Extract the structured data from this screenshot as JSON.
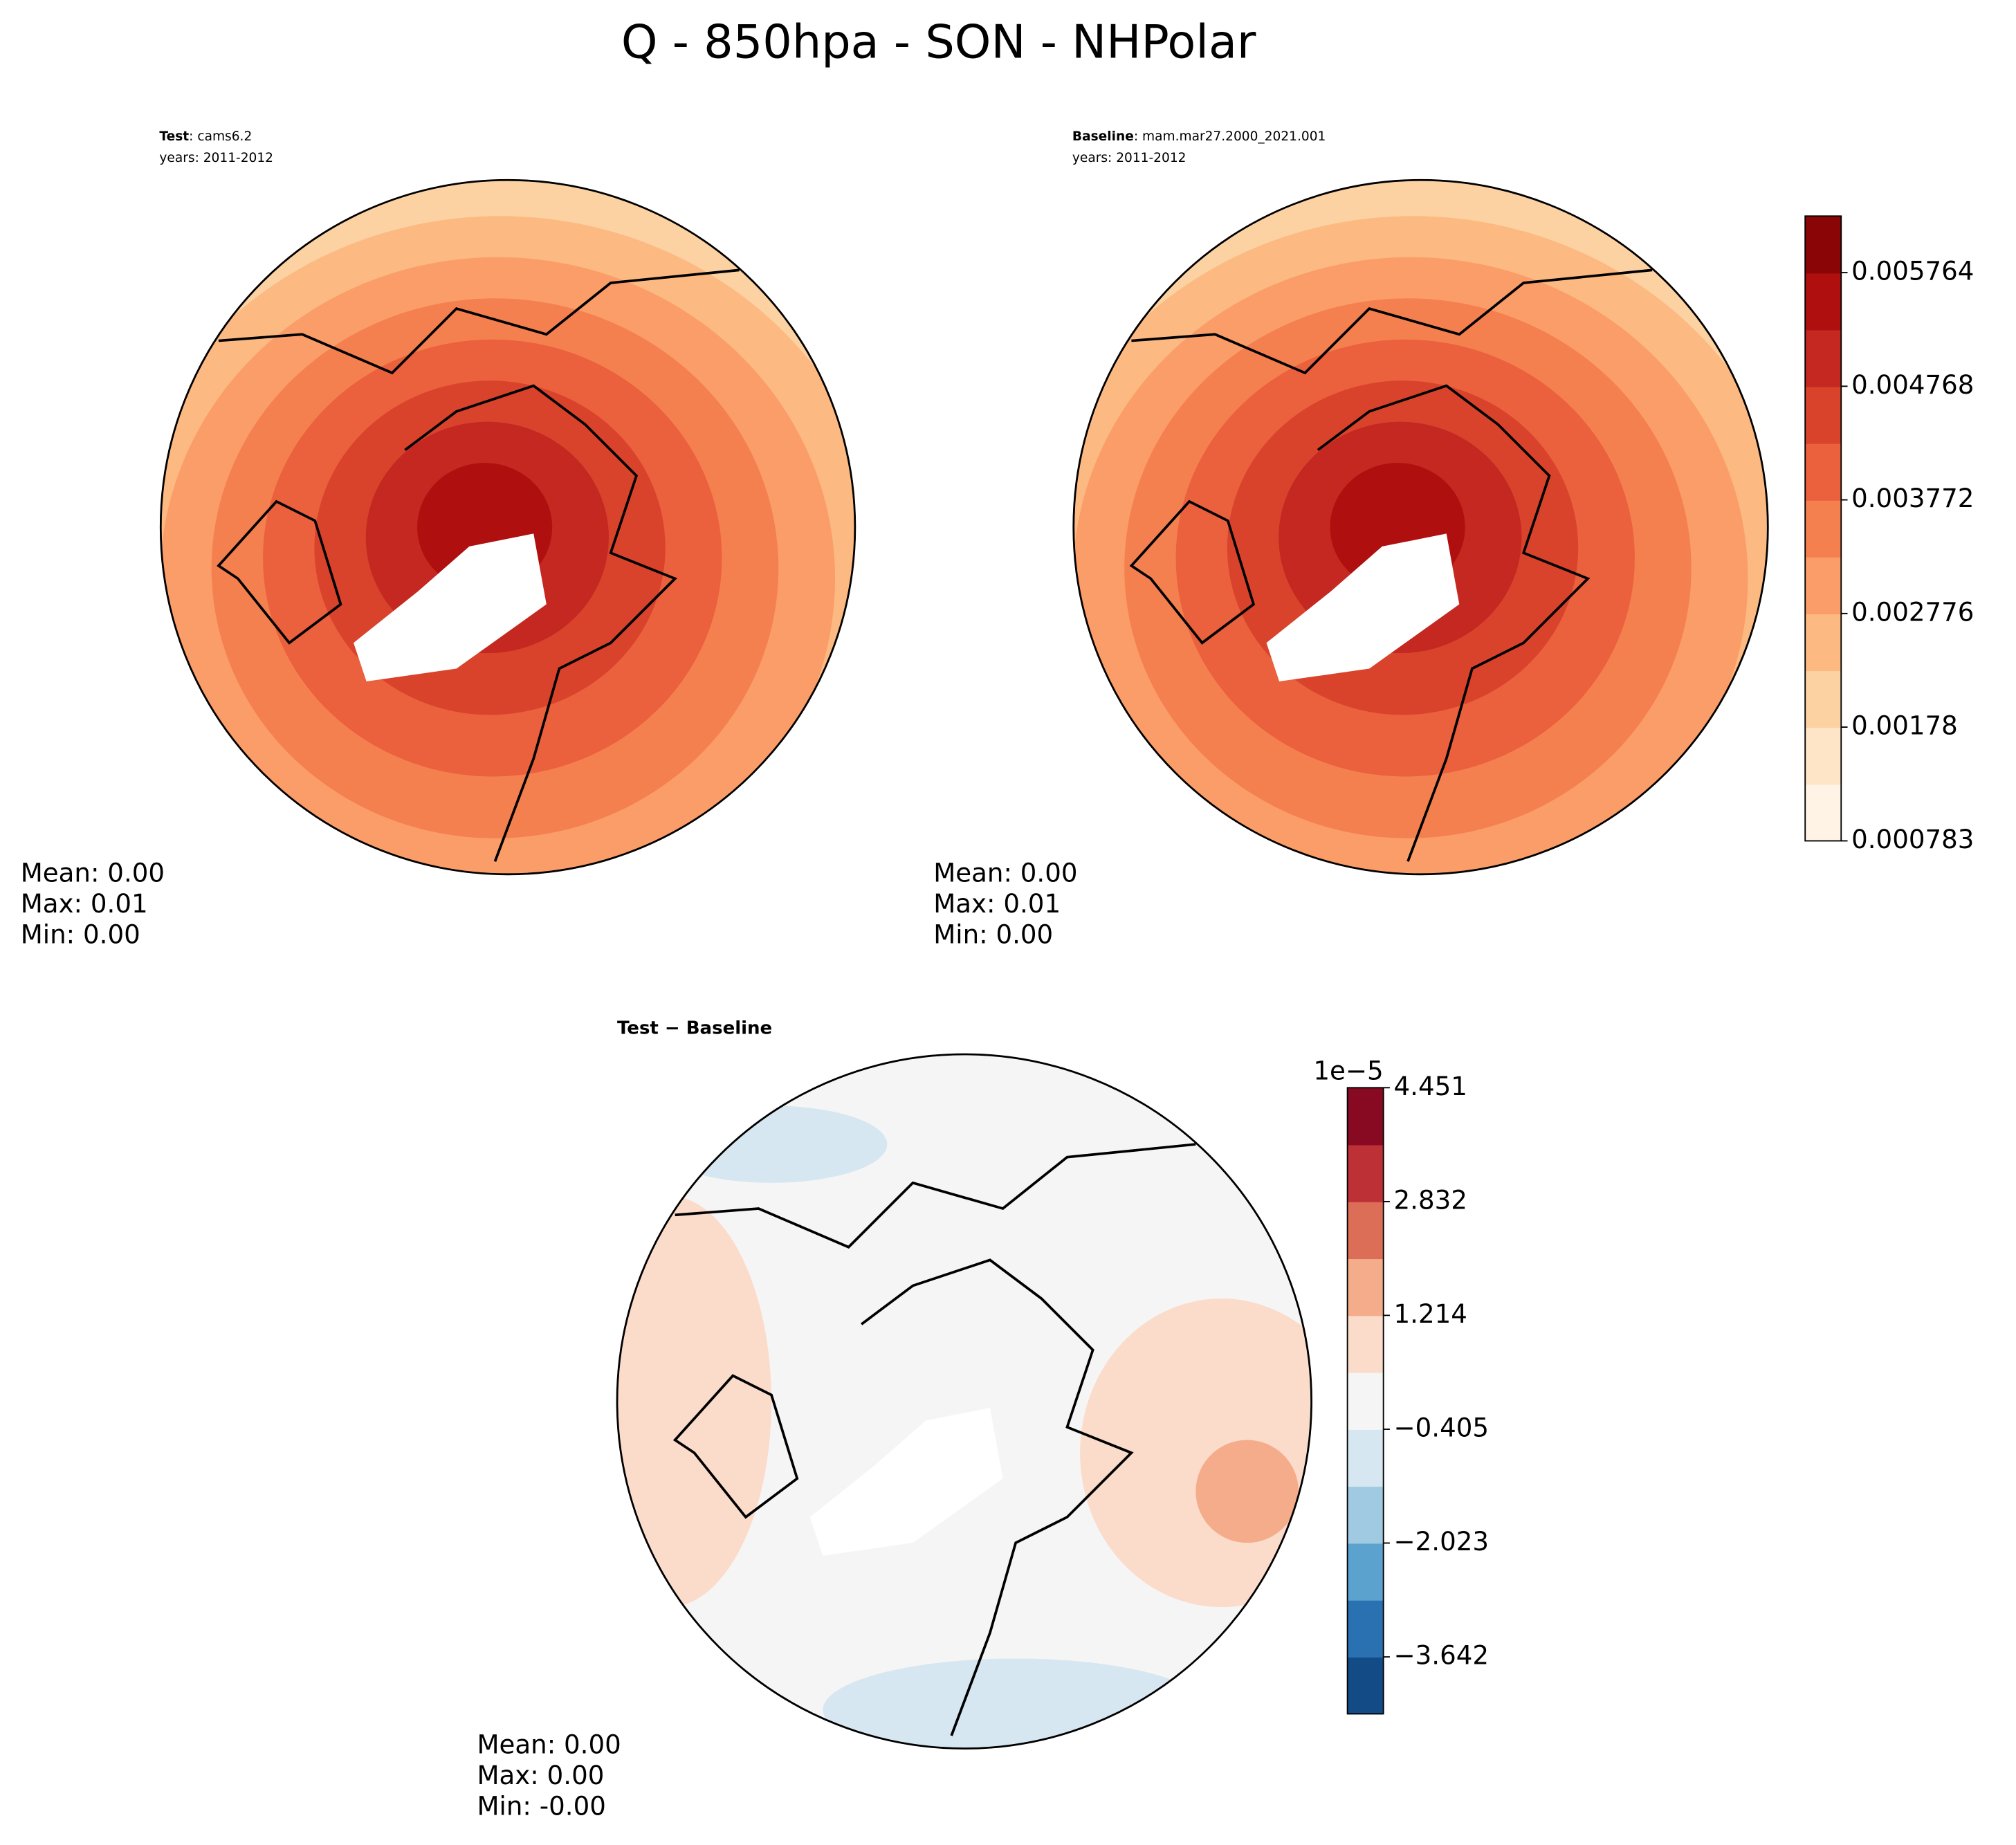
{
  "title": "Q - 850hpa - SON - NHPolar",
  "panels": [
    {
      "label": "Test",
      "name": ": cams6.2",
      "years": "years: 2011-2012",
      "stats": [
        "Mean:  0.00",
        "Max:  0.01",
        "Min:  0.00"
      ]
    },
    {
      "label": "Baseline",
      "name": ": mam.mar27.2000_2021.001",
      "years": "years: 2011-2012",
      "stats": [
        "Mean:  0.00",
        "Max:  0.01",
        "Min:  0.00"
      ]
    }
  ],
  "diff": {
    "label": "Test − Baseline",
    "stats": [
      "Mean:  0.00",
      "Max:  0.00",
      "Min: -0.00"
    ]
  },
  "colorbars": [
    {
      "lim": [
        0.000783,
        0.00626
      ],
      "ticks": [
        0.000783,
        0.00178,
        0.002776,
        0.003772,
        0.004768,
        0.005764
      ],
      "colors": [
        "#fff3e6",
        "#fee5c8",
        "#fdd2a2",
        "#fcba82",
        "#fb9d68",
        "#f5804f",
        "#eb603d",
        "#d9432c",
        "#c42820",
        "#b00f0f",
        "#8a0505"
      ]
    },
    {
      "lim": [
        -4.451,
        4.451
      ],
      "offset_label": "1e−5",
      "ticks": [
        {
          "value": -3.642,
          "label": "−3.642"
        },
        {
          "value": -2.023,
          "label": "−2.023"
        },
        {
          "value": -0.405,
          "label": "−0.405"
        },
        1.214,
        2.832,
        4.451
      ],
      "colors": [
        "#134b87",
        "#2a71b2",
        "#5ba2cf",
        "#9fcae1",
        "#d6e7f1",
        "#f5f5f5",
        "#fbdccb",
        "#f5ac8b",
        "#dc6e57",
        "#bd3036",
        "#880a22"
      ]
    }
  ]
}
